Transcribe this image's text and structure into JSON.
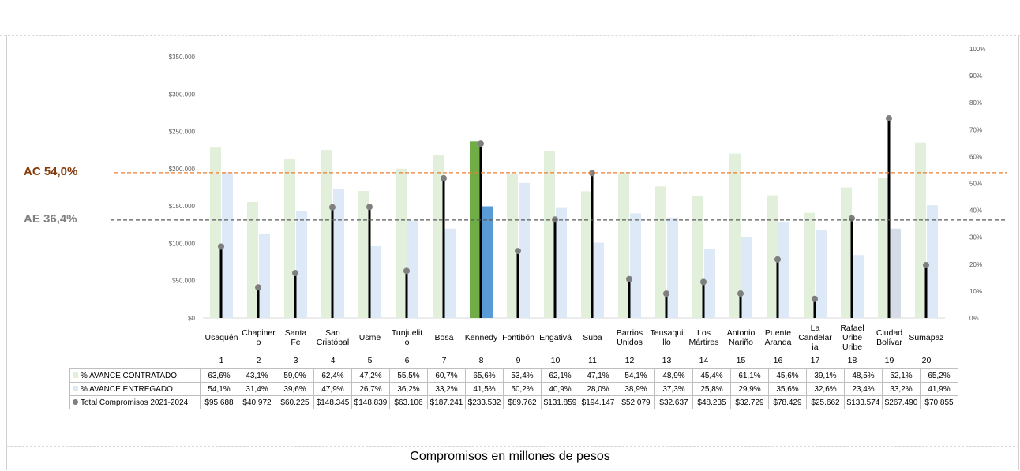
{
  "chart_data": {
    "type": "bar",
    "categories": [
      "Usaquén",
      "Chapinero",
      "Santa Fe",
      "San Cristóbal",
      "Usme",
      "Tunjuelito",
      "Bosa",
      "Kennedy",
      "Fontibón",
      "Engativá",
      "Suba",
      "Barrios Unidos",
      "Teusaquillo",
      "Los Mártires",
      "Antonio Nariño",
      "Puente Aranda",
      "La Candelaria",
      "Rafael Uribe Uribe",
      "Ciudad Bolívar",
      "Sumapaz"
    ],
    "category_display": [
      "Usaquén",
      "Chapiner o",
      "Santa Fe",
      "San Cristóbal",
      "Usme",
      "Tunjuelit o",
      "Bosa",
      "Kennedy",
      "Fontibón",
      "Engativá",
      "Suba",
      "Barrios Unidos",
      "Teusaqui llo",
      "Los Mártires",
      "Antonio Nariño",
      "Puente Aranda",
      "La Candelar ia",
      "Rafael Uribe Uribe",
      "Ciudad Bolívar",
      "Sumapaz"
    ],
    "numbers": [
      "1",
      "2",
      "3",
      "4",
      "5",
      "6",
      "7",
      "8",
      "9",
      "10",
      "11",
      "12",
      "13",
      "14",
      "15",
      "16",
      "17",
      "18",
      "19",
      "20"
    ],
    "series": [
      {
        "name": "% AVANCE CONTRATADO",
        "axis": "right",
        "color": "#e2efda",
        "values": [
          63.6,
          43.1,
          59.0,
          62.4,
          47.2,
          55.5,
          60.7,
          65.6,
          53.4,
          62.1,
          47.1,
          54.1,
          48.9,
          45.4,
          61.1,
          45.6,
          39.1,
          48.5,
          52.1,
          65.2
        ],
        "labels": [
          "63,6%",
          "43,1%",
          "59,0%",
          "62,4%",
          "47,2%",
          "55,5%",
          "60,7%",
          "65,6%",
          "53,4%",
          "62,1%",
          "47,1%",
          "54,1%",
          "48,9%",
          "45,4%",
          "61,1%",
          "45,6%",
          "39,1%",
          "48,5%",
          "52,1%",
          "65,2%"
        ]
      },
      {
        "name": "% AVANCE ENTREGADO",
        "axis": "right",
        "color": "#dde9f6",
        "values": [
          54.1,
          31.4,
          39.6,
          47.9,
          26.7,
          36.2,
          33.2,
          41.5,
          50.2,
          40.9,
          28.0,
          38.9,
          37.3,
          25.8,
          29.9,
          35.6,
          32.6,
          23.4,
          33.2,
          41.9
        ],
        "labels": [
          "54,1%",
          "31,4%",
          "39,6%",
          "47,9%",
          "26,7%",
          "36,2%",
          "33,2%",
          "41,5%",
          "50,2%",
          "40,9%",
          "28,0%",
          "38,9%",
          "37,3%",
          "25,8%",
          "29,9%",
          "35,6%",
          "32,6%",
          "23,4%",
          "33,2%",
          "41,9%"
        ]
      },
      {
        "name": "Total Compromisos 2021-2024",
        "axis": "left",
        "color": "#808080",
        "values": [
          95688,
          40972,
          60225,
          148345,
          148839,
          63106,
          187241,
          233532,
          89762,
          131859,
          194147,
          52079,
          32637,
          48235,
          32729,
          78429,
          25662,
          133574,
          267490,
          70855
        ],
        "labels": [
          "$95.688",
          "$40.972",
          "$60.225",
          "$148.345",
          "$148.839",
          "$63.106",
          "$187.241",
          "$233.532",
          "$89.762",
          "$131.859",
          "$194.147",
          "$52.079",
          "$32.637",
          "$48.235",
          "$32.729",
          "$78.429",
          "$25.662",
          "$133.574",
          "$267.490",
          "$70.855"
        ]
      }
    ],
    "highlight": {
      "index": 7,
      "contratado_color": "#70ad47",
      "entregado_color": "#5b9bd5"
    },
    "ylim_left": [
      0,
      350000
    ],
    "yticks_left": [
      "$0",
      "$50.000",
      "$100.000",
      "$150.000",
      "$200.000",
      "$250.000",
      "$300.000",
      "$350.000"
    ],
    "ylim_right": [
      0,
      100
    ],
    "yticks_right": [
      "0%",
      "10%",
      "20%",
      "30%",
      "40%",
      "50%",
      "60%",
      "70%",
      "80%",
      "90%",
      "100%"
    ],
    "reference_lines": [
      {
        "label": "AC 54,0%",
        "value": 54.0,
        "color": "#ed7d31",
        "text_color": "#843c0c"
      },
      {
        "label": "AE 36,4%",
        "value": 36.4,
        "color": "#595959",
        "text_color": "#808080"
      }
    ],
    "caption": "Compromisos en millones de pesos"
  }
}
